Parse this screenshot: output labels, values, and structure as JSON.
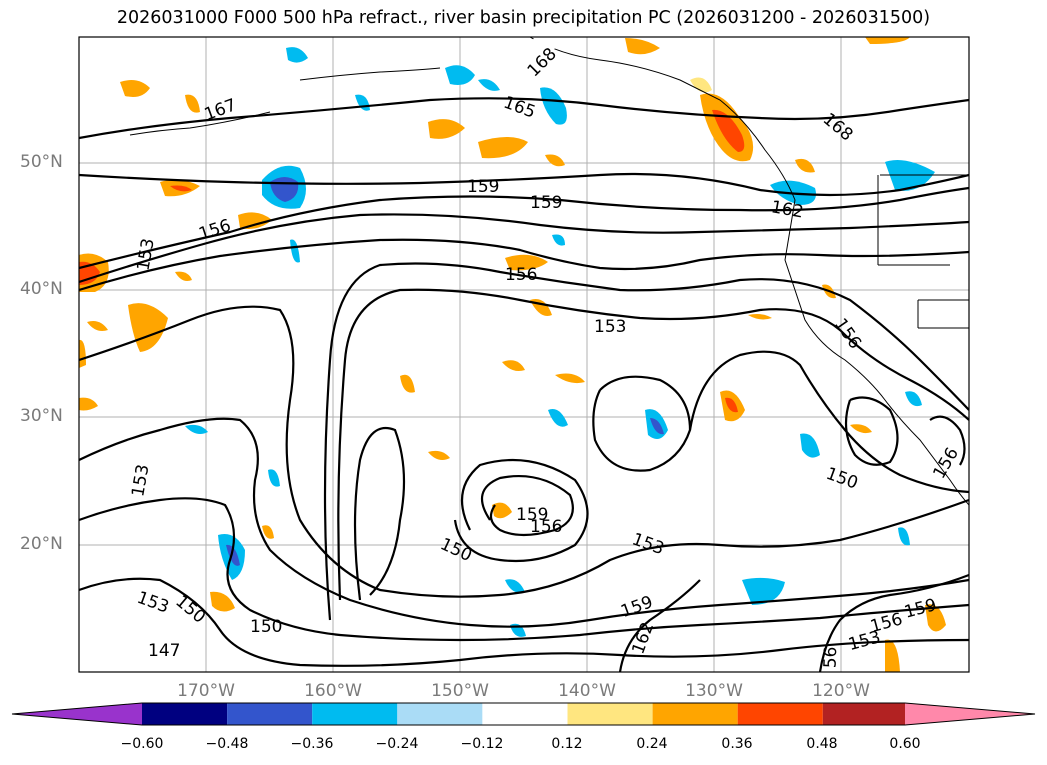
{
  "title": "2026031000 F000 500 hPa refract., river basin precipitation PC (2026031200 - 2026031500)",
  "lat_labels": [
    "50°N",
    "40°N",
    "30°N",
    "20°N"
  ],
  "lon_labels": [
    "170°W",
    "160°W",
    "150°W",
    "140°W",
    "130°W",
    "120°W"
  ],
  "contour_labels": {
    "c168a": "168",
    "c167": "167",
    "c165": "165",
    "c168b": "168",
    "c159a": "159",
    "c159b": "159",
    "c162a": "162",
    "c156a": "156",
    "c153a": "153",
    "c156b": "156",
    "c153b": "153",
    "c156c": "156",
    "c150a": "150",
    "c156d": "156",
    "c153c": "153",
    "c159c": "159",
    "c156e": "156",
    "c150b": "150",
    "c153d": "153",
    "c159d": "159",
    "c162b": "162",
    "c153e": "153",
    "c150c": "150",
    "c150d": "150",
    "c147": "147",
    "c56": "56",
    "c153f": "153",
    "c156f": "156",
    "c159e": "159"
  },
  "colorbar": {
    "ticks": [
      "−0.60",
      "−0.48",
      "−0.36",
      "−0.24",
      "−0.12",
      "0.12",
      "0.24",
      "0.36",
      "0.48",
      "0.60"
    ],
    "colors": [
      "#9933cc",
      "#000080",
      "#3355cc",
      "#00bbf0",
      "#aadcf6",
      "#ffffff",
      "#ffe680",
      "#ffa500",
      "#ff4500",
      "#b22222",
      "#ff88aa"
    ]
  }
}
